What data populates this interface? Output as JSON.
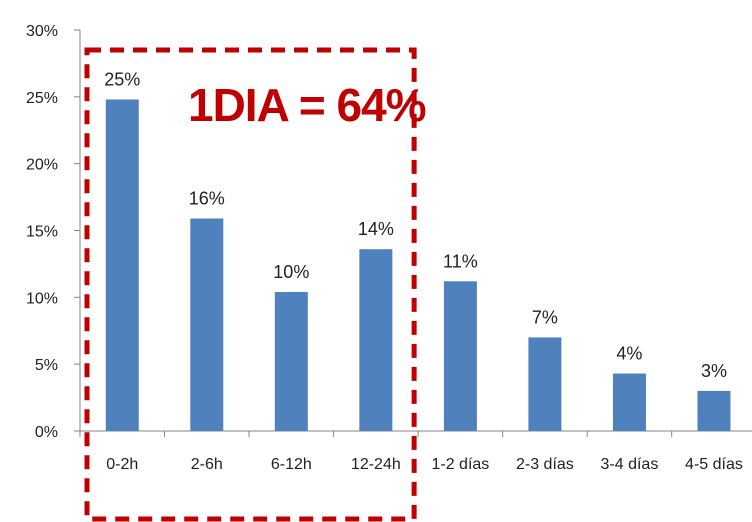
{
  "chart_data": {
    "type": "bar",
    "title": "",
    "xlabel": "",
    "ylabel": "",
    "categories": [
      "0-2h",
      "2-6h",
      "6-12h",
      "12-24h",
      "1-2 días",
      "2-3 días",
      "3-4 días",
      "4-5 días"
    ],
    "values": [
      24.8,
      15.9,
      10.4,
      13.6,
      11.2,
      7.0,
      4.3,
      3.0
    ],
    "data_labels": [
      "25%",
      "16%",
      "10%",
      "14%",
      "11%",
      "7%",
      "4%",
      "3%"
    ],
    "ylim": [
      0,
      30
    ],
    "yticks": [
      0,
      5,
      10,
      15,
      20,
      25,
      30
    ],
    "ytick_labels": [
      "0%",
      "5%",
      "10%",
      "15%",
      "20%",
      "25%",
      "30%"
    ],
    "grid": false,
    "bar_color": "#4f81bd",
    "annotation": {
      "text": "1DIA = 64%",
      "color": "#c00000",
      "highlighted_categories": [
        "0-2h",
        "2-6h",
        "6-12h",
        "12-24h"
      ],
      "box_style": "dashed"
    }
  }
}
